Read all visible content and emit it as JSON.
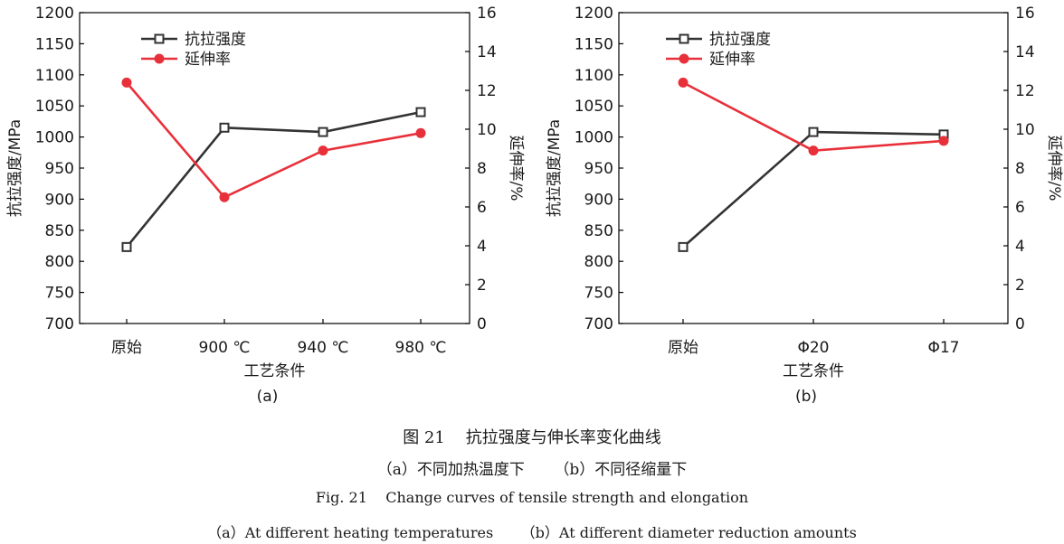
{
  "figure": {
    "caption_cn": "图 21    抗拉强度与伸长率变化曲线",
    "subcaption_cn": "（a）不同加热温度下      （b）不同径缩量下",
    "caption_en": "Fig. 21    Change curves of tensile strength and elongation",
    "subcaption_en": "（a）At different heating temperatures      （b）At different diameter reduction amounts"
  },
  "colors": {
    "strength": "#333333",
    "elongation": "#e8303a",
    "axis": "#000000"
  },
  "chart_data": [
    {
      "panel_label": "(a)",
      "type": "line",
      "categories": [
        "原始",
        "900 ℃",
        "940 ℃",
        "980 ℃"
      ],
      "xlabel": "工艺条件",
      "ylabel": "抗拉强度/MPa",
      "ylim": [
        700,
        1200
      ],
      "yticks": [
        700,
        750,
        800,
        850,
        900,
        950,
        1000,
        1050,
        1100,
        1150,
        1200
      ],
      "y2label": "延伸率/%",
      "y2lim": [
        0,
        16
      ],
      "y2ticks": [
        0,
        2,
        4,
        6,
        8,
        10,
        12,
        14,
        16
      ],
      "grid": false,
      "legend": "top-left",
      "series": [
        {
          "name": "抗拉强度",
          "axis": "left",
          "marker": "open-square",
          "values": [
            823,
            1015,
            1008,
            1040
          ]
        },
        {
          "name": "延伸率",
          "axis": "right",
          "marker": "filled-circle",
          "values": [
            12.4,
            6.5,
            8.9,
            9.8
          ]
        }
      ]
    },
    {
      "panel_label": "(b)",
      "type": "line",
      "categories": [
        "原始",
        "Φ20",
        "Φ17"
      ],
      "xlabel": "工艺条件",
      "ylabel": "抗拉强度/MPa",
      "ylim": [
        700,
        1200
      ],
      "yticks": [
        700,
        750,
        800,
        850,
        900,
        950,
        1000,
        1050,
        1100,
        1150,
        1200
      ],
      "y2label": "延伸率/%",
      "y2lim": [
        0,
        16
      ],
      "y2ticks": [
        0,
        2,
        4,
        6,
        8,
        10,
        12,
        14,
        16
      ],
      "grid": false,
      "legend": "top-left",
      "series": [
        {
          "name": "抗拉强度",
          "axis": "left",
          "marker": "open-square",
          "values": [
            823,
            1008,
            1004
          ]
        },
        {
          "name": "延伸率",
          "axis": "right",
          "marker": "filled-circle",
          "values": [
            12.4,
            8.9,
            9.4
          ]
        }
      ]
    }
  ]
}
